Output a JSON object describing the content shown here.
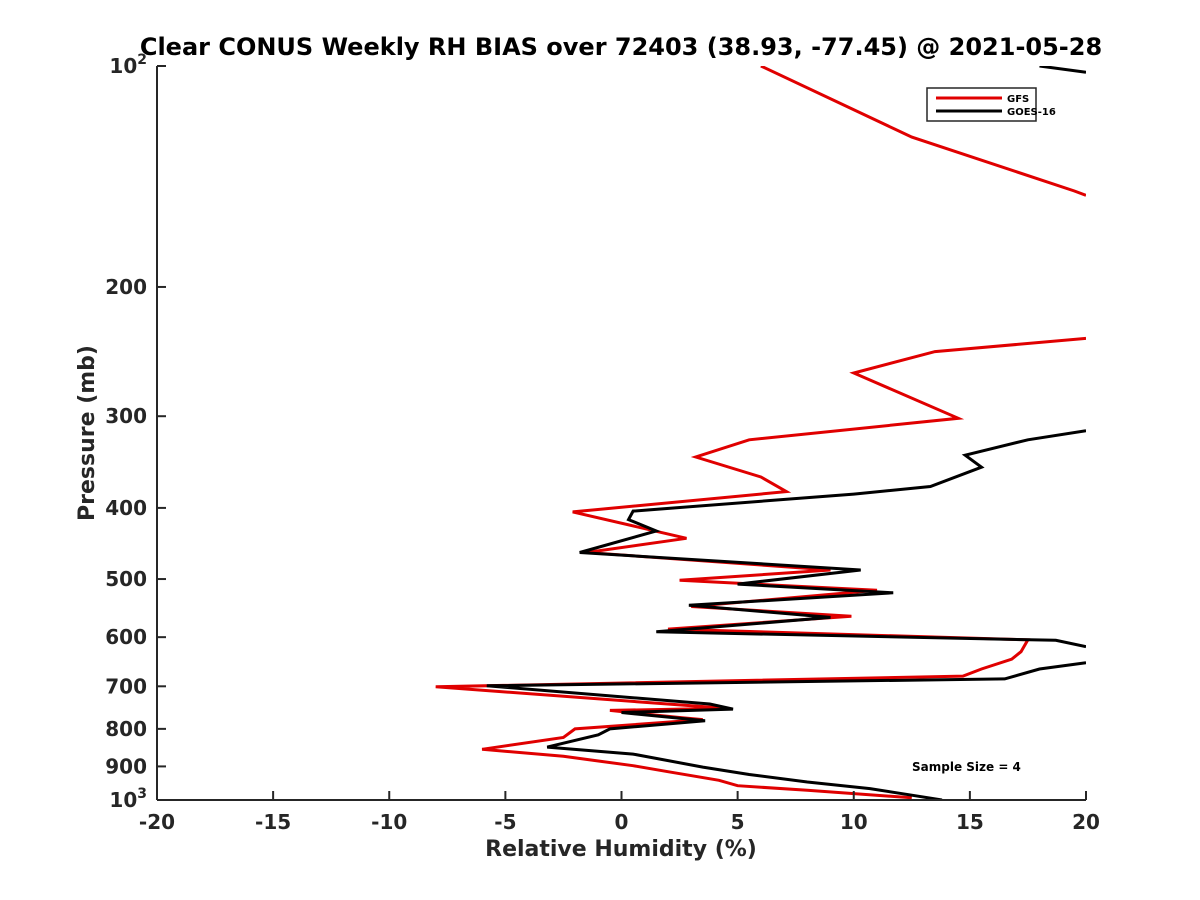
{
  "chart_data": {
    "type": "line",
    "title": "Clear CONUS Weekly RH BIAS over 72403 (38.93, -77.45) @ 2021-05-28",
    "xlabel": "Relative Humidity (%)",
    "ylabel": "Pressure (mb)",
    "xlim": [
      -20,
      20
    ],
    "ylim": [
      100,
      1000
    ],
    "y_scale": "log",
    "y_reversed": true,
    "grid": false,
    "x_ticks": [
      -20,
      -15,
      -10,
      -5,
      0,
      5,
      10,
      15,
      20
    ],
    "x_tick_labels": [
      "-20",
      "-15",
      "-10",
      "-5",
      "0",
      "5",
      "10",
      "15",
      "20"
    ],
    "y_ticks": [
      100,
      200,
      300,
      400,
      500,
      600,
      700,
      800,
      900,
      1000
    ],
    "y_tick_labels": [
      {
        "base": "10",
        "exp": "2"
      },
      {
        "base": "200"
      },
      {
        "base": "300"
      },
      {
        "base": "400"
      },
      {
        "base": "500"
      },
      {
        "base": "600"
      },
      {
        "base": "700"
      },
      {
        "base": "800"
      },
      {
        "base": "900"
      },
      {
        "base": "10",
        "exp": "3"
      }
    ],
    "legend_position": "top-right",
    "annotation": "Sample Size = 4",
    "series": [
      {
        "name": "GFS",
        "color": "#e00000",
        "points": [
          [
            6.0,
            100
          ],
          [
            12.5,
            125
          ],
          [
            19.5,
            148
          ],
          [
            20,
            150
          ],
          null,
          [
            20,
            235
          ],
          [
            13.5,
            245
          ],
          [
            10.0,
            262
          ],
          [
            14.5,
            302
          ],
          [
            5.5,
            323
          ],
          [
            3.2,
            341
          ],
          [
            6.0,
            363
          ],
          [
            7.1,
            380
          ],
          [
            -2.1,
            405
          ],
          [
            2.8,
            440
          ],
          [
            -1.5,
            460
          ],
          [
            9.0,
            486
          ],
          [
            2.5,
            502
          ],
          [
            11.0,
            518
          ],
          [
            3.0,
            545
          ],
          [
            9.9,
            562
          ],
          [
            2.0,
            585
          ],
          [
            17.5,
            605
          ],
          [
            17.2,
            628
          ],
          [
            16.8,
            643
          ],
          [
            15.5,
            663
          ],
          [
            14.7,
            678
          ],
          [
            -8.0,
            701
          ],
          [
            2.5,
            742
          ],
          [
            4.5,
            750
          ],
          [
            -0.5,
            755
          ],
          [
            2.5,
            772
          ],
          [
            3.5,
            777
          ],
          [
            -2.0,
            800
          ],
          [
            -2.5,
            822
          ],
          [
            -6.0,
            853
          ],
          [
            -2.5,
            872
          ],
          [
            0.5,
            898
          ],
          [
            2.0,
            915
          ],
          [
            4.2,
            940
          ],
          [
            5.0,
            956
          ],
          [
            8.0,
            970
          ],
          [
            12.5,
            993
          ]
        ]
      },
      {
        "name": "GOES-16",
        "color": "#000000",
        "points": [
          [
            18.0,
            100
          ],
          [
            20,
            102
          ],
          null,
          [
            20,
            314
          ],
          [
            17.5,
            323
          ],
          [
            14.8,
            339
          ],
          [
            15.5,
            352
          ],
          [
            13.3,
            374
          ],
          [
            10.0,
            383
          ],
          [
            0.5,
            404
          ],
          [
            0.3,
            415
          ],
          [
            1.5,
            430
          ],
          [
            -1.8,
            460
          ],
          [
            10.3,
            486
          ],
          [
            5.0,
            508
          ],
          [
            11.7,
            522
          ],
          [
            2.9,
            543
          ],
          [
            9.0,
            564
          ],
          [
            1.5,
            590
          ],
          [
            18.7,
            606
          ],
          [
            20,
            618
          ],
          null,
          [
            20,
            650
          ],
          [
            18.0,
            663
          ],
          [
            16.5,
            684
          ],
          [
            -5.8,
            699
          ],
          [
            3.8,
            740
          ],
          [
            4.8,
            752
          ],
          [
            0.0,
            760
          ],
          [
            3.6,
            780
          ],
          [
            -0.5,
            800
          ],
          [
            -1.0,
            815
          ],
          [
            -3.2,
            847
          ],
          [
            0.5,
            866
          ],
          [
            3.5,
            902
          ],
          [
            5.5,
            923
          ],
          [
            8.0,
            945
          ],
          [
            10.7,
            965
          ],
          [
            12.5,
            985
          ],
          [
            13.8,
            1000
          ]
        ]
      }
    ]
  }
}
